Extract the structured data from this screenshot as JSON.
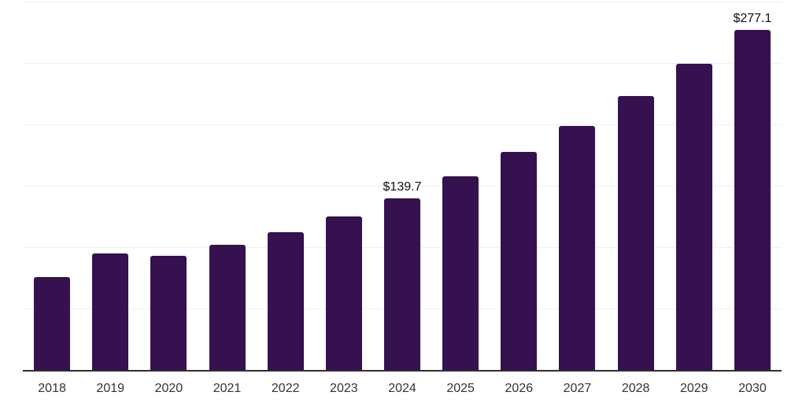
{
  "chart_data": {
    "type": "bar",
    "title": "",
    "xlabel": "",
    "ylabel": "",
    "categories": [
      "2018",
      "2019",
      "2020",
      "2021",
      "2022",
      "2023",
      "2024",
      "2025",
      "2026",
      "2027",
      "2028",
      "2029",
      "2030"
    ],
    "values": [
      75.6,
      94.8,
      92.9,
      101.9,
      112.1,
      124.9,
      139.7,
      157.4,
      177.6,
      198.6,
      222.9,
      249.2,
      277.1
    ],
    "data_labels": {
      "2024": "$139.7",
      "2030": "$277.1"
    },
    "value_prefix": "$",
    "ylim": [
      0,
      300
    ],
    "grid_step": 50,
    "grid": "horizontal-only",
    "legend": "none",
    "y_axis_labels": "none"
  },
  "style": {
    "bar_color": "#351150",
    "grid_color": "#efefef",
    "axis_color": "#2e2e2e",
    "data_label_color": "#111111",
    "tick_label_color": "#333333",
    "background_color": "#ffffff"
  }
}
